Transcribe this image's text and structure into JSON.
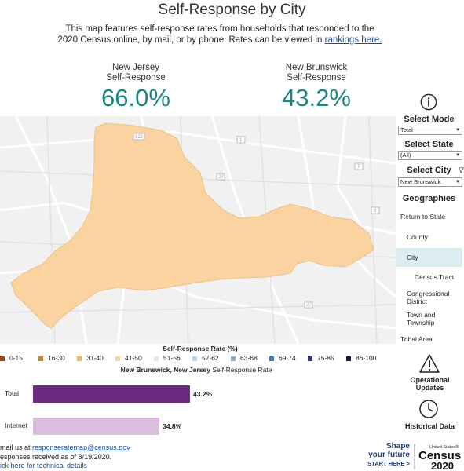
{
  "title": "Self-Response by City",
  "intro": {
    "text": "This map features self-response rates from households that responded to the 2020 Census online, by mail, or by phone. Rates can be viewed in",
    "link": "rankings here."
  },
  "kpis": [
    {
      "label1": "New Jersey",
      "label2": "Self-Response",
      "value": "66.0%"
    },
    {
      "label1": "New Brunswick",
      "label2": "Self-Response",
      "value": "43.2%"
    }
  ],
  "map": {
    "road_labels": [
      "622",
      "27",
      "1",
      "7",
      "27",
      "9"
    ],
    "fill_color": "#fad3a0"
  },
  "panel": {
    "select_mode": {
      "label": "Select Mode",
      "value": "Total"
    },
    "select_state": {
      "label": "Select State",
      "value": "(All)"
    },
    "select_city": {
      "label": "Select City",
      "value": "New Brunswick"
    },
    "geographies_title": "Geographies",
    "geographies": [
      "Return to State",
      "County",
      "City",
      "Census Tract",
      "Congressional District",
      "Town and Township",
      "Tribal Area"
    ],
    "active_geography": "City",
    "operational_updates": "Operational Updates",
    "historical_data": "Historical Data"
  },
  "legend": {
    "title": "Self-Response Rate (%)",
    "items": [
      {
        "label": "0-15",
        "color": "#a0460a"
      },
      {
        "label": "16-30",
        "color": "#cc8426"
      },
      {
        "label": "31-40",
        "color": "#f0b45c"
      },
      {
        "label": "41-50",
        "color": "#fad3a0"
      },
      {
        "label": "51-56",
        "color": "#ddeaf3"
      },
      {
        "label": "57-62",
        "color": "#b9d6ea"
      },
      {
        "label": "63-68",
        "color": "#7fb0d4"
      },
      {
        "label": "69-74",
        "color": "#3f78b0"
      },
      {
        "label": "75-85",
        "color": "#2a3589"
      },
      {
        "label": "86-100",
        "color": "#101a4a"
      }
    ]
  },
  "chart_data": {
    "type": "bar",
    "title_bold": "New Brunswick, New Jersey",
    "title_rest": "Self-Response Rate",
    "categories": [
      "Total",
      "Internet"
    ],
    "values": [
      43.2,
      34.8
    ],
    "value_labels": [
      "43.2%",
      "34.8%"
    ],
    "colors": [
      "#6a2a7f",
      "#d9bedd"
    ]
  },
  "footer": {
    "line1_prefix": "mail us at",
    "email": "responseratemap@census.gov",
    "line2": "esponses received as of 8/19/2020.",
    "line3": "ick here for technical details"
  },
  "branding": {
    "shape_line1": "Shape",
    "shape_line2": "your future",
    "start_here": "START HERE >",
    "logo_top": "United States®",
    "logo_mid": "Census",
    "logo_year": "2020"
  }
}
